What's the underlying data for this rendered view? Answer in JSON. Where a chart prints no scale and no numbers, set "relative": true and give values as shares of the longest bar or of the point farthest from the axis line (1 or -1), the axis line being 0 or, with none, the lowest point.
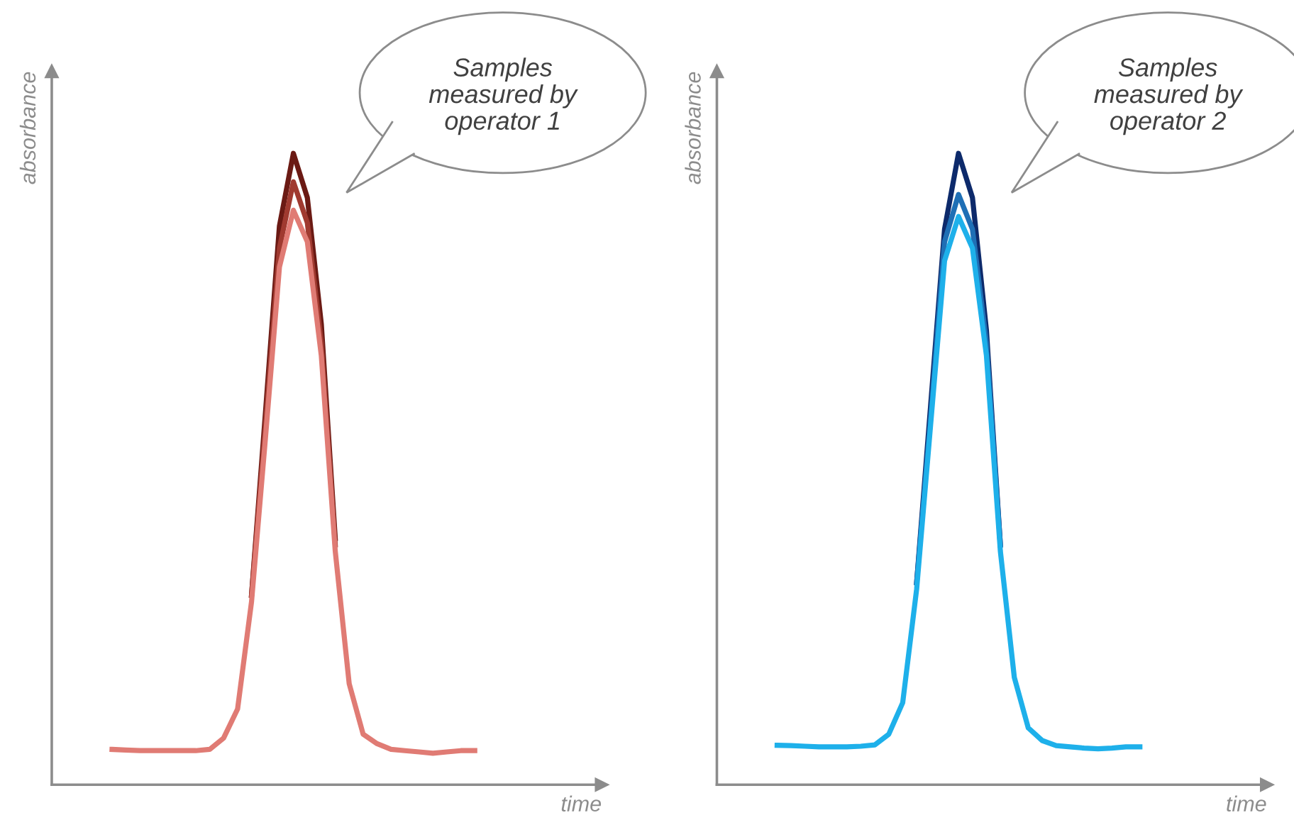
{
  "chart_data": [
    {
      "type": "line",
      "relative": true,
      "xlabel": "time",
      "ylabel": "absorbance",
      "annotations": [
        "Samples\nmeasured by\noperator 1"
      ],
      "grid": false,
      "marker": "none",
      "line_style": "solid",
      "categories": [
        null,
        null,
        null,
        null,
        null,
        null,
        null,
        null,
        null,
        null,
        null,
        null,
        null,
        null,
        null,
        null,
        null,
        null,
        null,
        null,
        null,
        null,
        null,
        null,
        null,
        null,
        null
      ],
      "series": [
        {
          "color": "#6b1a14",
          "values": [
            null,
            null,
            null,
            null,
            null,
            null,
            null,
            null,
            null,
            null,
            0.3,
            0.59,
            0.885,
            1,
            0.93,
            0.73,
            0.39,
            null,
            null,
            null,
            null,
            null,
            null,
            null,
            null,
            null,
            null
          ]
        },
        {
          "color": "#a03a30",
          "values": [
            null,
            null,
            null,
            null,
            null,
            null,
            null,
            null,
            null,
            null,
            0.3,
            0.57,
            0.85,
            0.955,
            0.89,
            0.7,
            0.38,
            null,
            null,
            null,
            null,
            null,
            null,
            null,
            null,
            null,
            null
          ]
        },
        {
          "color": "#e07b74",
          "values": [
            0.056,
            0.055,
            0.054,
            0.054,
            0.054,
            0.054,
            0.054,
            0.056,
            0.074,
            0.12,
            0.29,
            0.55,
            0.82,
            0.91,
            0.86,
            0.68,
            0.37,
            0.16,
            0.08,
            0.065,
            0.056,
            0.054,
            0.052,
            0.05,
            0.052,
            0.054,
            0.054
          ]
        }
      ]
    },
    {
      "type": "line",
      "relative": true,
      "xlabel": "time",
      "ylabel": "absorbance",
      "annotations": [
        "Samples\nmeasured by\noperator 2"
      ],
      "grid": false,
      "marker": "none",
      "line_style": "solid",
      "categories": [
        null,
        null,
        null,
        null,
        null,
        null,
        null,
        null,
        null,
        null,
        null,
        null,
        null,
        null,
        null,
        null,
        null,
        null,
        null,
        null,
        null,
        null,
        null,
        null,
        null,
        null,
        null
      ],
      "series": [
        {
          "color": "#0d2a6b",
          "values": [
            null,
            null,
            null,
            null,
            null,
            null,
            null,
            null,
            null,
            null,
            0.32,
            0.6,
            0.88,
            1,
            0.93,
            0.72,
            0.38,
            null,
            null,
            null,
            null,
            null,
            null,
            null,
            null,
            null,
            null
          ]
        },
        {
          "color": "#1f6fb5",
          "values": [
            null,
            null,
            null,
            null,
            null,
            null,
            null,
            null,
            null,
            null,
            0.32,
            0.58,
            0.86,
            0.935,
            0.88,
            0.7,
            0.38,
            null,
            null,
            null,
            null,
            null,
            null,
            null,
            null,
            null,
            null
          ]
        },
        {
          "color": "#1eb0ea",
          "values": [
            0.0625,
            0.062,
            0.061,
            0.06,
            0.06,
            0.06,
            0.061,
            0.063,
            0.08,
            0.13,
            0.31,
            0.57,
            0.83,
            0.9,
            0.85,
            0.68,
            0.37,
            0.17,
            0.09,
            0.07,
            0.062,
            0.06,
            0.058,
            0.057,
            0.058,
            0.06,
            0.06
          ]
        }
      ]
    }
  ]
}
